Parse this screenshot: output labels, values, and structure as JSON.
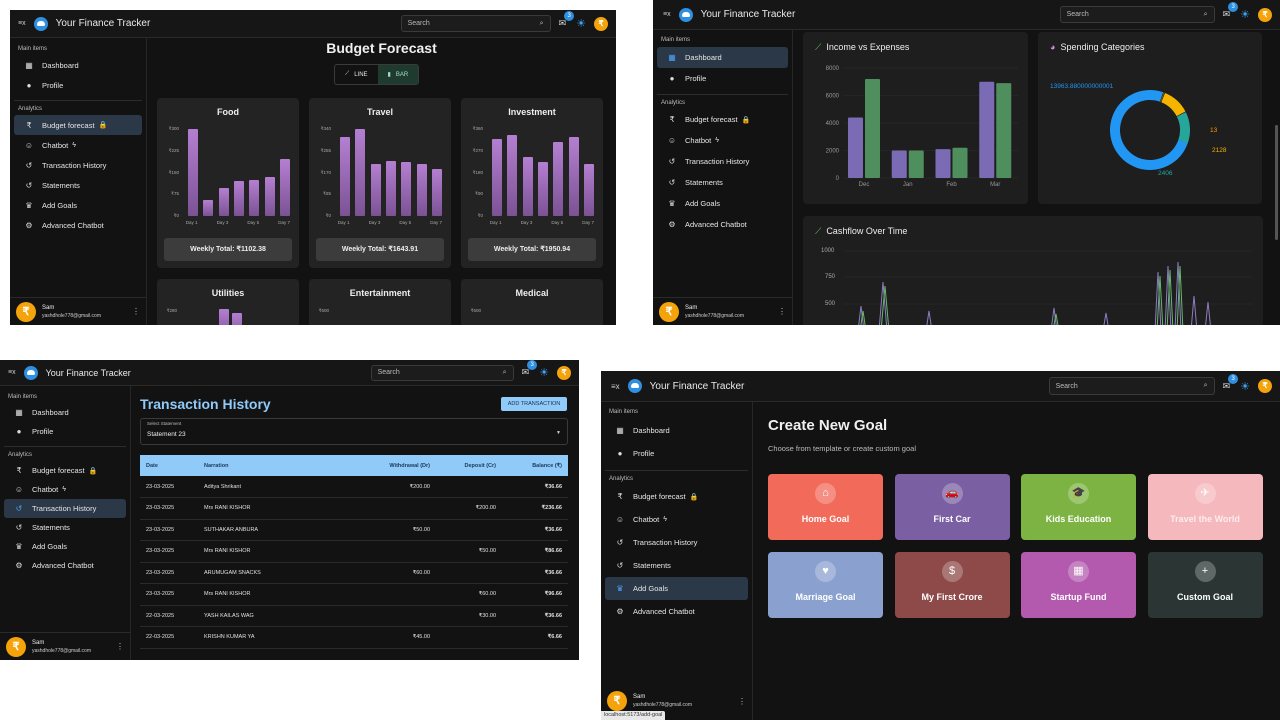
{
  "app": {
    "title": "Your Finance Tracker",
    "search_placeholder": "Search",
    "mail_badge": "3",
    "menu_glyph": "≡x",
    "avatar_glyph": "₹"
  },
  "sidebar": {
    "main_header": "Main items",
    "analytics_header": "Analytics",
    "items_main": [
      {
        "label": "Dashboard",
        "icon": "grid-icon"
      },
      {
        "label": "Profile",
        "icon": "person-icon"
      }
    ],
    "items_analytics": [
      {
        "label": "Budget forecast",
        "icon": "rupee-icon"
      },
      {
        "label": "Chatbot",
        "icon": "robot-icon"
      },
      {
        "label": "Transaction History",
        "icon": "history-icon"
      },
      {
        "label": "Statements",
        "icon": "history-icon"
      },
      {
        "label": "Add Goals",
        "icon": "trophy-icon"
      },
      {
        "label": "Advanced Chatbot",
        "icon": "robot-arm-icon"
      }
    ],
    "user_name": "Sam",
    "user_email": "yashdhole778@gmail.com"
  },
  "forecast": {
    "title": "Budget Forecast",
    "toggle": [
      "LINE",
      "BAR"
    ],
    "cards": [
      {
        "title": "Food",
        "yticks": [
          "₹0",
          "₹75",
          "₹150",
          "₹225",
          "₹300"
        ],
        "values": [
          300,
          55,
          95,
          120,
          125,
          135,
          195
        ],
        "total": "Weekly Total: ₹1102.38"
      },
      {
        "title": "Travel",
        "yticks": [
          "₹0",
          "₹85",
          "₹170",
          "₹255",
          "₹340"
        ],
        "values": [
          310,
          340,
          205,
          215,
          210,
          205,
          185
        ],
        "total": "Weekly Total: ₹1643.91"
      },
      {
        "title": "Investment",
        "yticks": [
          "₹0",
          "₹90",
          "₹180",
          "₹270",
          "₹360"
        ],
        "values": [
          320,
          335,
          245,
          225,
          305,
          325,
          215
        ],
        "total": "Weekly Total: ₹1950.94"
      },
      {
        "title": "Utilities",
        "yticks": [
          "₹280"
        ]
      },
      {
        "title": "Entertainment",
        "yticks": [
          "₹600"
        ]
      },
      {
        "title": "Medical",
        "yticks": [
          "₹600"
        ]
      }
    ],
    "xticks": [
      "Day 1",
      "Day 3",
      "Day 5",
      "Day 7"
    ]
  },
  "chart_data": [
    {
      "type": "bar",
      "title": "Food",
      "categories": [
        "Day 1",
        "Day 2",
        "Day 3",
        "Day 4",
        "Day 5",
        "Day 6",
        "Day 7"
      ],
      "values": [
        300,
        55,
        95,
        120,
        125,
        135,
        195
      ],
      "ylim": [
        0,
        300
      ]
    },
    {
      "type": "bar",
      "title": "Travel",
      "categories": [
        "Day 1",
        "Day 2",
        "Day 3",
        "Day 4",
        "Day 5",
        "Day 6",
        "Day 7"
      ],
      "values": [
        310,
        340,
        205,
        215,
        210,
        205,
        185
      ],
      "ylim": [
        0,
        340
      ]
    },
    {
      "type": "bar",
      "title": "Investment",
      "categories": [
        "Day 1",
        "Day 2",
        "Day 3",
        "Day 4",
        "Day 5",
        "Day 6",
        "Day 7"
      ],
      "values": [
        320,
        335,
        245,
        225,
        305,
        325,
        215
      ],
      "ylim": [
        0,
        360
      ]
    },
    {
      "type": "bar",
      "title": "Income vs Expenses",
      "categories": [
        "Dec",
        "Jan",
        "Feb",
        "Mar"
      ],
      "series": [
        {
          "values": [
            4400,
            2000,
            2100,
            7000
          ]
        },
        {
          "values": [
            7200,
            2000,
            2200,
            6900
          ]
        }
      ],
      "ylim": [
        0,
        8000
      ]
    },
    {
      "type": "pie",
      "title": "Spending Categories",
      "labels": [
        "13963.880000000001",
        "13",
        "2128",
        "2406"
      ],
      "values": [
        13963.88,
        13,
        2128,
        2406
      ]
    }
  ],
  "dashboard": {
    "income_title": "Income vs Expenses",
    "income_yticks": [
      "0",
      "2000",
      "4000",
      "6000",
      "8000"
    ],
    "income_xticks": [
      "Dec",
      "Jan",
      "Feb",
      "Mar"
    ],
    "spending_title": "Spending Categories",
    "donut_labels": [
      "13963.880000000001",
      "13",
      "2128",
      "2406"
    ],
    "cashflow_title": "Cashflow Over Time",
    "cashflow_yticks": [
      "1000",
      "750",
      "500"
    ]
  },
  "transactions": {
    "title": "Transaction History",
    "add_button": "ADD TRANSACTION",
    "select_label": "Select Statement",
    "select_value": "Statement 23",
    "columns": [
      "Date",
      "Narration",
      "Withdrawal (Dr)",
      "Deposit (Cr)",
      "Balance (₹)"
    ],
    "rows": [
      {
        "date": "23-03-2025",
        "narration": "Aditya Shrikant",
        "dr": "₹200.00",
        "cr": "",
        "bal": "₹36.66"
      },
      {
        "date": "23-03-2025",
        "narration": "Mrs RANI KISHOR",
        "dr": "",
        "cr": "₹200.00",
        "bal": "₹236.66"
      },
      {
        "date": "23-03-2025",
        "narration": "SUTHAKAR ANBURA",
        "dr": "₹50.00",
        "cr": "",
        "bal": "₹36.66"
      },
      {
        "date": "23-03-2025",
        "narration": "Mrs RANI KISHOR",
        "dr": "",
        "cr": "₹50.00",
        "bal": "₹86.66"
      },
      {
        "date": "23-03-2025",
        "narration": "ARUMUGAM SNACKS",
        "dr": "₹60.00",
        "cr": "",
        "bal": "₹36.66"
      },
      {
        "date": "23-03-2025",
        "narration": "Mrs RANI KISHOR",
        "dr": "",
        "cr": "₹60.00",
        "bal": "₹96.66"
      },
      {
        "date": "22-03-2025",
        "narration": "YASH KAILAS WAG",
        "dr": "",
        "cr": "₹30.00",
        "bal": "₹36.66"
      },
      {
        "date": "22-03-2025",
        "narration": "KRISHN KUMAR YA",
        "dr": "₹45.00",
        "cr": "",
        "bal": "₹6.66"
      }
    ]
  },
  "goals": {
    "title": "Create New Goal",
    "subtitle": "Choose from template or create custom goal",
    "tiles": [
      {
        "label": "Home Goal",
        "icon": "home-icon",
        "glyph": "⌂",
        "color": "#f26a5a"
      },
      {
        "label": "First Car",
        "icon": "car-icon",
        "glyph": "🚗",
        "color": "#7a5fa3"
      },
      {
        "label": "Kids Education",
        "icon": "graduation-icon",
        "glyph": "🎓",
        "color": "#7cb342"
      },
      {
        "label": "Travel the World",
        "icon": "plane-icon",
        "glyph": "✈",
        "color": "#f5b8bd"
      },
      {
        "label": "Marriage Goal",
        "icon": "heart-icon",
        "glyph": "♥",
        "color": "#8aa1d0"
      },
      {
        "label": "My First Crore",
        "icon": "dollar-icon",
        "glyph": "$",
        "color": "#8d4a48"
      },
      {
        "label": "Startup Fund",
        "icon": "building-icon",
        "glyph": "▦",
        "color": "#b35aae"
      },
      {
        "label": "Custom Goal",
        "icon": "plus-icon",
        "glyph": "+",
        "color": "#2b3534"
      }
    ],
    "status_url": "localhost:5173/add-goal"
  }
}
